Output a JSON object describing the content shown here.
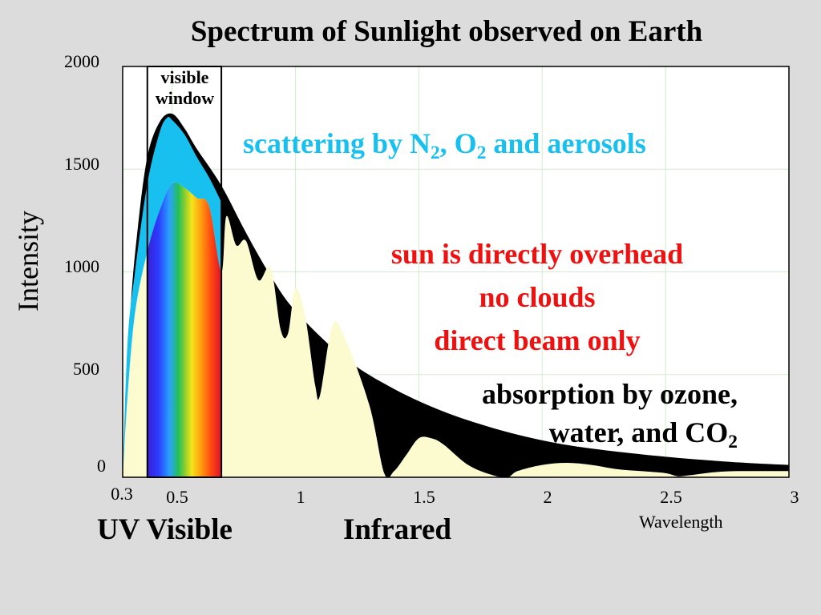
{
  "chart_data": {
    "type": "area",
    "title": "Spectrum of Sunlight observed on Earth",
    "ylabel": "Intensity",
    "xlabel": "Wavelength",
    "xlim": [
      0.3,
      3
    ],
    "ylim": [
      0,
      2000
    ],
    "x_ticks": [
      "0.3",
      "0.5",
      "1",
      "1.5",
      "2",
      "2.5",
      "3"
    ],
    "x_tick_values": [
      0.3,
      0.5,
      1,
      1.5,
      2,
      2.5,
      3
    ],
    "y_ticks": [
      "0",
      "500",
      "1000",
      "1500",
      "2000"
    ],
    "y_tick_values": [
      0,
      500,
      1000,
      1500,
      2000
    ],
    "grid": true,
    "series": [
      {
        "color": "#000000",
        "x": [
          0.3,
          0.33,
          0.36,
          0.4,
          0.45,
          0.5,
          0.55,
          0.6,
          0.7,
          0.8,
          0.9,
          1.0,
          1.2,
          1.4,
          1.6,
          1.8,
          2.0,
          2.2,
          2.5,
          2.8,
          3.0
        ],
        "values": [
          0,
          780,
          1200,
          1560,
          1730,
          1770,
          1700,
          1600,
          1420,
          1190,
          980,
          810,
          580,
          430,
          320,
          240,
          180,
          140,
          100,
          72,
          60
        ]
      },
      {
        "color": "#18c0f0",
        "x": [
          0.3,
          0.32,
          0.35,
          0.4,
          0.45,
          0.48,
          0.5,
          0.55,
          0.6,
          0.65,
          0.7
        ],
        "values": [
          0,
          660,
          1000,
          1430,
          1680,
          1750,
          1740,
          1670,
          1560,
          1460,
          1340
        ]
      },
      {
        "color": "#fbfbcf",
        "x": [
          0.3,
          0.32,
          0.35,
          0.4,
          0.45,
          0.5,
          0.55,
          0.6,
          0.65,
          0.7,
          0.72,
          0.76,
          0.8,
          0.85,
          0.9,
          0.94,
          0.97,
          1.0,
          1.04,
          1.08,
          1.1,
          1.15,
          1.2,
          1.3,
          1.36,
          1.4,
          1.45,
          1.5,
          1.55,
          1.6,
          1.7,
          1.8,
          1.86,
          1.9,
          2.0,
          2.1,
          2.2,
          2.3,
          2.4,
          2.5,
          2.55,
          2.6,
          2.7,
          2.8,
          2.9,
          3.0
        ],
        "values": [
          0,
          400,
          800,
          1100,
          1300,
          1430,
          1410,
          1360,
          1320,
          1000,
          1270,
          1130,
          1150,
          960,
          1020,
          720,
          700,
          920,
          780,
          450,
          400,
          740,
          680,
          350,
          20,
          30,
          110,
          190,
          190,
          160,
          60,
          10,
          0,
          30,
          60,
          70,
          60,
          40,
          30,
          20,
          5,
          10,
          25,
          30,
          30,
          30
        ]
      }
    ],
    "visible_window": [
      0.4,
      0.7
    ],
    "annotations": {
      "visible_window": [
        "visible",
        "window"
      ],
      "scattering": "scattering by N2, O2 and aerosols",
      "conditions": [
        "sun is directly overhead",
        "no clouds",
        "direct beam only"
      ],
      "absorption": [
        "absorption by ozone,",
        "water, and CO2"
      ]
    }
  },
  "labels": {
    "uv_visible": "UV Visible",
    "infrared": "Infrared"
  },
  "colors": {
    "plot_bg": "#ffffff",
    "background": "#dcdcdc",
    "grid": "#cfeecb",
    "black_band": "#000000",
    "scattering": "#18c0f0",
    "ground": "#fbfbcf",
    "red_text": "#f01010"
  }
}
